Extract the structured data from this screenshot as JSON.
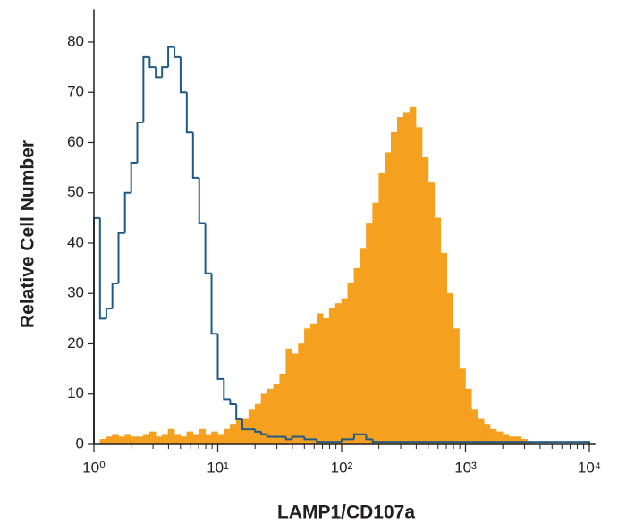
{
  "chart_data": {
    "type": "histogram",
    "xlabel": "LAMP1/CD107a",
    "ylabel": "Relative Cell Number",
    "xscale": "log",
    "xlim": [
      1,
      11200
    ],
    "ylim": [
      0,
      86.5
    ],
    "xticks": [
      {
        "value": 1,
        "label": "10⁰"
      },
      {
        "value": 10,
        "label": "10¹"
      },
      {
        "value": 100,
        "label": "10²"
      },
      {
        "value": 1000,
        "label": "10³"
      },
      {
        "value": 10000,
        "label": "10⁴"
      }
    ],
    "xminorticks": [
      2,
      3,
      4,
      5,
      6,
      7,
      8,
      9,
      20,
      30,
      40,
      50,
      60,
      70,
      80,
      90,
      200,
      300,
      400,
      500,
      600,
      700,
      800,
      900,
      2000,
      3000,
      4000,
      5000,
      6000,
      7000,
      8000,
      9000
    ],
    "yticks": [
      0,
      10,
      20,
      30,
      40,
      50,
      60,
      70,
      80
    ],
    "bins": [
      1,
      1.12,
      1.26,
      1.41,
      1.58,
      1.78,
      2,
      2.24,
      2.51,
      2.82,
      3.16,
      3.55,
      3.98,
      4.47,
      5.01,
      5.62,
      6.31,
      7.08,
      7.94,
      8.91,
      10,
      11.2,
      12.6,
      14.1,
      15.8,
      17.8,
      20,
      22.4,
      25.1,
      28.2,
      31.6,
      35.5,
      39.8,
      44.7,
      50.1,
      56.2,
      63.1,
      70.8,
      79.4,
      89.1,
      100,
      112,
      126,
      141,
      158,
      178,
      200,
      224,
      251,
      282,
      316,
      355,
      398,
      447,
      501,
      562,
      631,
      708,
      794,
      891,
      1000,
      1120,
      1260,
      1410,
      1580,
      1780,
      2000,
      2240,
      2510,
      2820,
      3160,
      3550,
      3980,
      4470,
      5010,
      5620,
      6310,
      7080,
      7940,
      8910,
      10000
    ],
    "series": [
      {
        "color": "#f5a01e",
        "style": "filled",
        "values": [
          0,
          1,
          1.5,
          2,
          1.5,
          2,
          1.5,
          1.5,
          2,
          2.5,
          1.5,
          2,
          3,
          2,
          1.5,
          2.5,
          2,
          3,
          2,
          2.5,
          2,
          3,
          4,
          5,
          5,
          7,
          8,
          10,
          11,
          12,
          14,
          19,
          18,
          20,
          23,
          24,
          26,
          25,
          27,
          28,
          29,
          32,
          35,
          39,
          44,
          48,
          54,
          58,
          62,
          65,
          66,
          67,
          63,
          57,
          52,
          45,
          38,
          30,
          23,
          15,
          11,
          7,
          5,
          4,
          3,
          2.5,
          2,
          1.5,
          1.5,
          1,
          0.5,
          0,
          0,
          0,
          0,
          0,
          0,
          0,
          0,
          0
        ]
      },
      {
        "color": "#1f5a86",
        "style": "outline",
        "values": [
          45,
          25,
          27,
          32,
          42,
          50,
          56,
          64,
          77,
          75,
          73,
          75,
          79,
          77,
          70,
          62,
          53,
          44,
          34,
          22,
          13,
          9,
          8,
          5,
          3,
          3,
          2.5,
          2,
          1.5,
          1.5,
          1.5,
          1,
          1.5,
          1.5,
          1,
          1,
          0.5,
          0.5,
          0.5,
          0.5,
          1,
          1,
          2,
          2,
          1,
          0.5,
          0.5,
          0.5,
          0.5,
          0.5,
          0.5,
          0.5,
          0.5,
          0.5,
          0.5,
          0.5,
          0.5,
          0.5,
          0.5,
          0.5,
          0.5,
          0.5,
          0.5,
          0.5,
          0.5,
          0.5,
          0.5,
          0.5,
          0.5,
          0.5,
          0.5,
          0.5,
          0.5,
          0.5,
          0.5,
          0.5,
          0.5,
          0.5,
          0.5,
          0.5
        ]
      }
    ]
  }
}
